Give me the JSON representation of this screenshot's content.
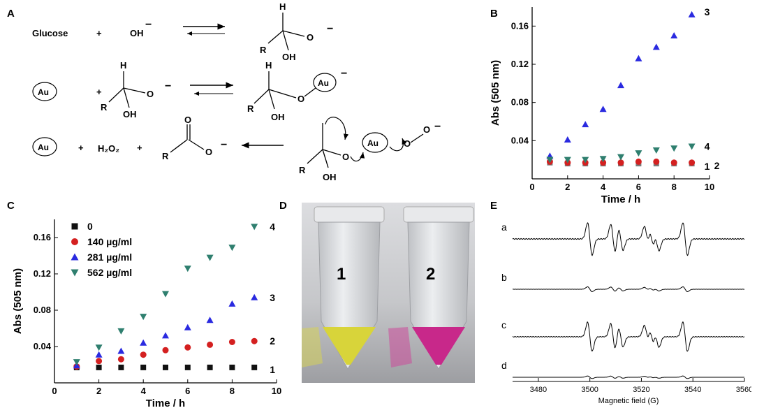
{
  "panels": {
    "a": {
      "letter": "A"
    },
    "b": {
      "letter": "B"
    },
    "c": {
      "letter": "C"
    },
    "d": {
      "letter": "D"
    },
    "e": {
      "letter": "E"
    }
  },
  "scheme": {
    "glucose": "Glucose",
    "plus": "+",
    "oh_minus": "OH",
    "charge": "−",
    "h": "H",
    "o": "O",
    "oh": "OH",
    "r": "R",
    "au": "Au",
    "h2o2": "H₂O₂"
  },
  "photo": {
    "tube_1_label": "1",
    "tube_2_label": "2",
    "tube_1_color": "#d8d43a",
    "tube_2_color": "#c8288a"
  },
  "epr": {
    "xlabel": "Magnetic field (G)",
    "xlim": [
      3470,
      3560
    ],
    "ticks": [
      3480,
      3500,
      3520,
      3540,
      3560
    ],
    "traces": [
      {
        "label": "a",
        "amplitude": 1.0
      },
      {
        "label": "b",
        "amplitude": 0.15
      },
      {
        "label": "c",
        "amplitude": 0.9
      },
      {
        "label": "d",
        "amplitude": 0.08
      }
    ]
  },
  "chart_data": [
    {
      "panel": "B",
      "type": "scatter",
      "xlabel": "Time / h",
      "ylabel": "Abs (505 nm)",
      "xlim": [
        0,
        10
      ],
      "ylim": [
        0.0,
        0.18
      ],
      "xticks": [
        0,
        2,
        4,
        6,
        8,
        10
      ],
      "yticks": [
        0.04,
        0.08,
        0.12,
        0.16
      ],
      "x": [
        1,
        2,
        3,
        4,
        5,
        6,
        7,
        8,
        9
      ],
      "series": [
        {
          "label": "1",
          "marker": "square",
          "color": "#7a7a7a",
          "values": [
            0.017,
            0.016,
            0.016,
            0.016,
            0.016,
            0.016,
            0.016,
            0.016,
            0.016
          ]
        },
        {
          "label": "2",
          "marker": "circle",
          "color": "#d42020",
          "values": [
            0.018,
            0.017,
            0.017,
            0.017,
            0.017,
            0.018,
            0.018,
            0.017,
            0.017
          ]
        },
        {
          "label": "3",
          "marker": "triangle-up",
          "color": "#2a2ae0",
          "values": [
            0.024,
            0.041,
            0.057,
            0.073,
            0.098,
            0.126,
            0.138,
            0.15,
            0.172
          ]
        },
        {
          "label": "4",
          "marker": "triangle-down",
          "color": "#2f7f6f",
          "values": [
            0.02,
            0.02,
            0.02,
            0.021,
            0.023,
            0.027,
            0.03,
            0.032,
            0.034
          ]
        }
      ]
    },
    {
      "panel": "C",
      "type": "scatter",
      "xlabel": "Time / h",
      "ylabel": "Abs (505 nm)",
      "xlim": [
        0,
        10
      ],
      "ylim": [
        0.0,
        0.18
      ],
      "xticks": [
        0,
        2,
        4,
        6,
        8,
        10
      ],
      "yticks": [
        0.04,
        0.08,
        0.12,
        0.16
      ],
      "legend": "top-left",
      "x": [
        1,
        2,
        3,
        4,
        5,
        6,
        7,
        8,
        9
      ],
      "series": [
        {
          "name": "0",
          "label": "1",
          "marker": "square",
          "color": "#111111",
          "values": [
            0.017,
            0.017,
            0.017,
            0.017,
            0.017,
            0.017,
            0.017,
            0.017,
            0.017
          ]
        },
        {
          "name": "140 µg/ml",
          "label": "2",
          "marker": "circle",
          "color": "#d42020",
          "values": [
            0.018,
            0.024,
            0.026,
            0.031,
            0.036,
            0.039,
            0.042,
            0.045,
            0.046
          ]
        },
        {
          "name": "281 µg/ml",
          "label": "3",
          "marker": "triangle-up",
          "color": "#2a2ae0",
          "values": [
            0.019,
            0.031,
            0.035,
            0.044,
            0.052,
            0.061,
            0.069,
            0.087,
            0.094
          ]
        },
        {
          "name": "562 µg/ml",
          "label": "4",
          "marker": "triangle-down",
          "color": "#2f7f6f",
          "values": [
            0.023,
            0.039,
            0.057,
            0.073,
            0.098,
            0.126,
            0.138,
            0.149,
            0.172
          ]
        }
      ]
    }
  ]
}
